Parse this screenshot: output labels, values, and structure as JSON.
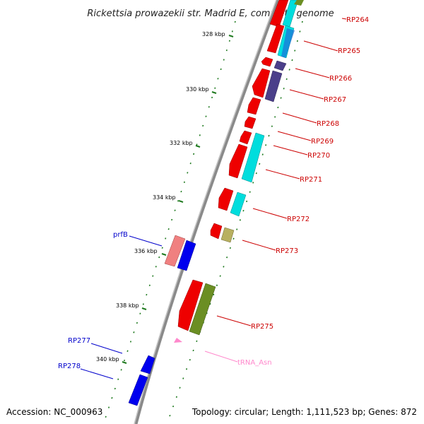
{
  "title": "Rickettsia prowazekii str. Madrid E, complete genome",
  "footer": {
    "accession": "Accession: NC_000963",
    "summary": "Topology: circular; Length: 1,111,523 bp; Genes: 872"
  },
  "colors": {
    "backbone": "#8a8a8a",
    "ticks": "#1f7a1f",
    "label_red": "#cc0000",
    "label_blue": "#0000cc",
    "label_pink": "#ff77bb"
  },
  "ticks": [
    {
      "label": "328 kbp"
    },
    {
      "label": "330 kbp"
    },
    {
      "label": "332 kbp"
    },
    {
      "label": "334 kbp"
    },
    {
      "label": "336 kbp"
    },
    {
      "label": "338 kbp"
    },
    {
      "label": "340 kbp"
    }
  ],
  "labels": [
    {
      "text": "RP264",
      "color": "red"
    },
    {
      "text": "RP265",
      "color": "red"
    },
    {
      "text": "RP266",
      "color": "red"
    },
    {
      "text": "RP267",
      "color": "red"
    },
    {
      "text": "RP268",
      "color": "red"
    },
    {
      "text": "RP269",
      "color": "red"
    },
    {
      "text": "RP270",
      "color": "red"
    },
    {
      "text": "RP271",
      "color": "red"
    },
    {
      "text": "RP272",
      "color": "red"
    },
    {
      "text": "RP273",
      "color": "red"
    },
    {
      "text": "RP275",
      "color": "red"
    },
    {
      "text": "tRNA_Asn",
      "color": "pink"
    },
    {
      "text": "prfB",
      "color": "blue"
    },
    {
      "text": "RP277",
      "color": "blue"
    },
    {
      "text": "RP278",
      "color": "blue"
    }
  ]
}
